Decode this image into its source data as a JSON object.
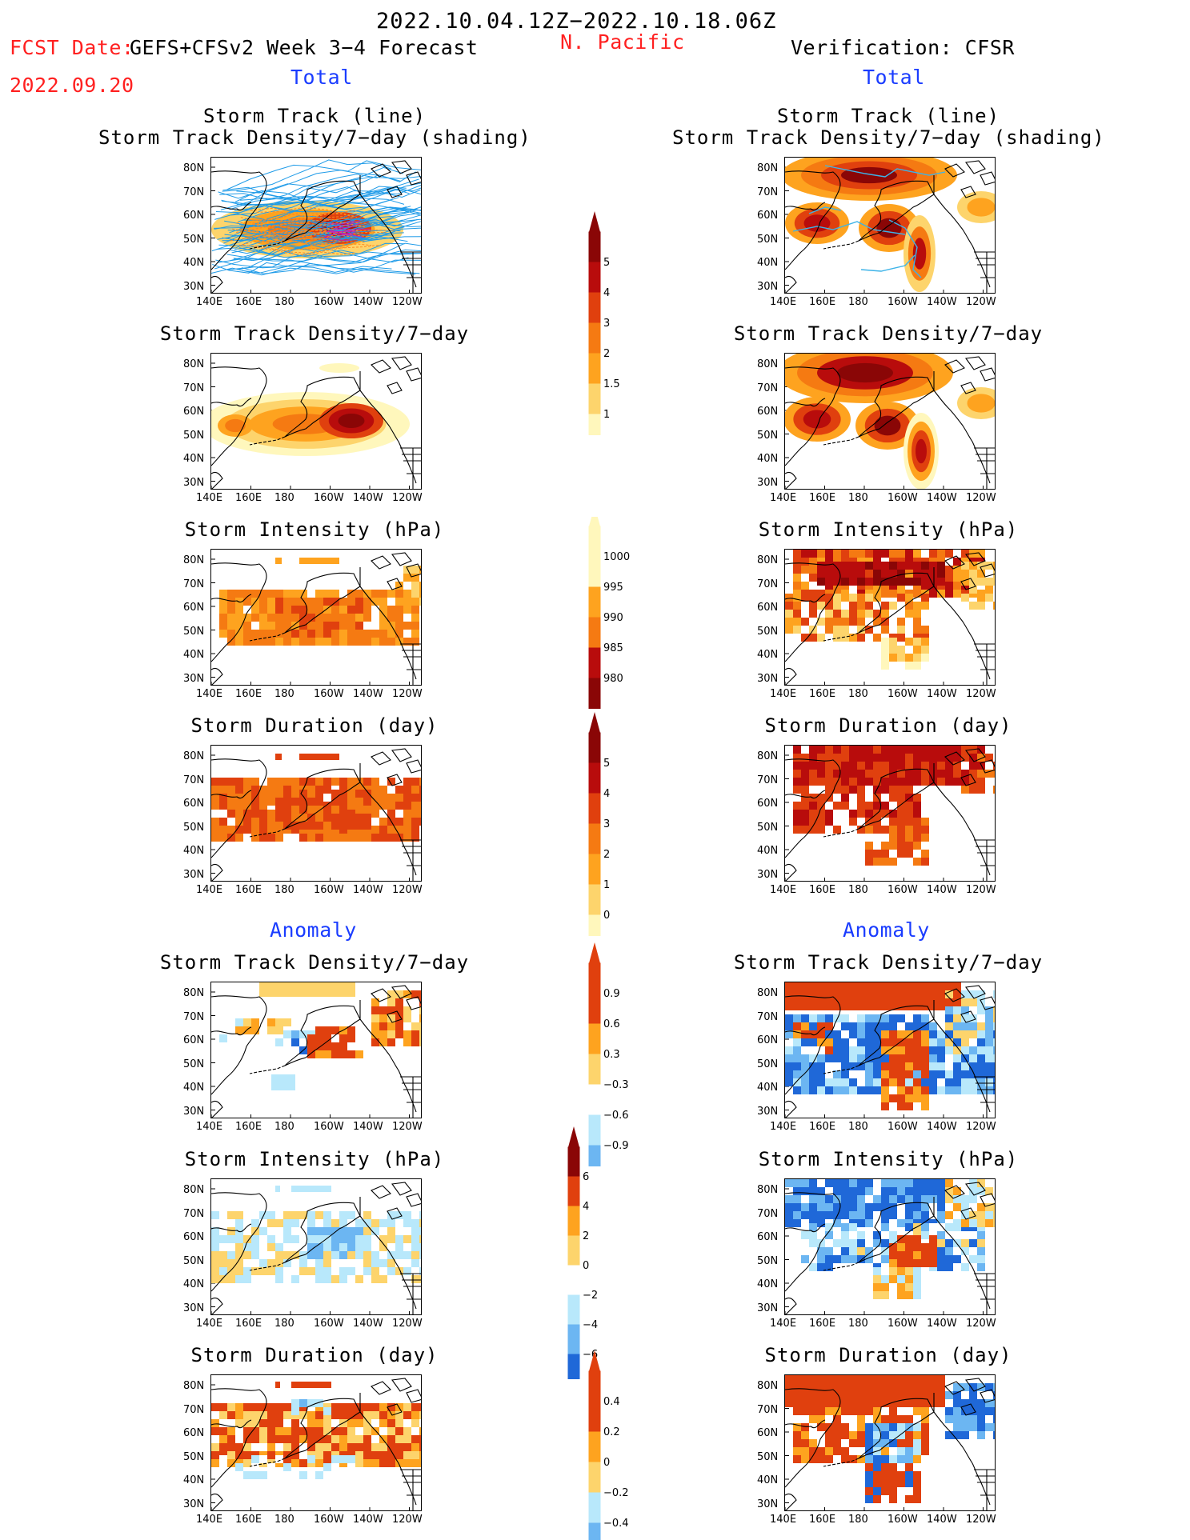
{
  "header": {
    "date_range": "2022.10.04.12Z−2022.10.18.06Z",
    "fcst_date_label": "FCST Date:",
    "fcst_date": "2022.09.20",
    "model": "GEFS+CFSv2 Week 3−4 Forecast",
    "region": "N. Pacific",
    "verification": "Verification: CFSR",
    "left_section": "Total",
    "right_section": "Total",
    "anom_left": "Anomaly",
    "anom_right": "Anomaly"
  },
  "axes": {
    "lat_labels": [
      "80N",
      "70N",
      "60N",
      "50N",
      "40N",
      "30N"
    ],
    "lon_labels": [
      "140E",
      "160E",
      "180",
      "160W",
      "140W",
      "120W"
    ]
  },
  "panels": {
    "track_title_1": "Storm Track (line)",
    "track_title_2": "Storm Track Density/7−day (shading)",
    "density": "Storm Track Density/7−day",
    "intensity": "Storm Intensity (hPa)",
    "duration": "Storm Duration (day)"
  },
  "colorbars": {
    "density": [
      "5",
      "4",
      "3",
      "2",
      "1.5",
      "1"
    ],
    "intensity": [
      "1000",
      "995",
      "990",
      "985",
      "980"
    ],
    "duration": [
      "5",
      "4",
      "3",
      "2",
      "1",
      "0"
    ],
    "anom_density": [
      "0.9",
      "0.6",
      "0.3",
      "−0.3",
      "−0.6",
      "−0.9"
    ],
    "anom_intensity": [
      "6",
      "4",
      "2",
      "0",
      "−2",
      "−4",
      "−6"
    ],
    "anom_duration": [
      "0.4",
      "0.2",
      "0",
      "−0.2",
      "−0.4"
    ]
  },
  "colors": {
    "warm": [
      "#fff7bc",
      "#fdd46c",
      "#fea31f",
      "#f57a12",
      "#e0400e",
      "#b80c0c",
      "#8a0606"
    ],
    "anom": [
      "#e0400e",
      "#fea31f",
      "#fdd46c",
      "#ffffff",
      "#b8e8fb",
      "#6cb6f2",
      "#1f68d8"
    ],
    "track_line": "#1f9be8",
    "track_line_obs": "#3db3e8"
  }
}
